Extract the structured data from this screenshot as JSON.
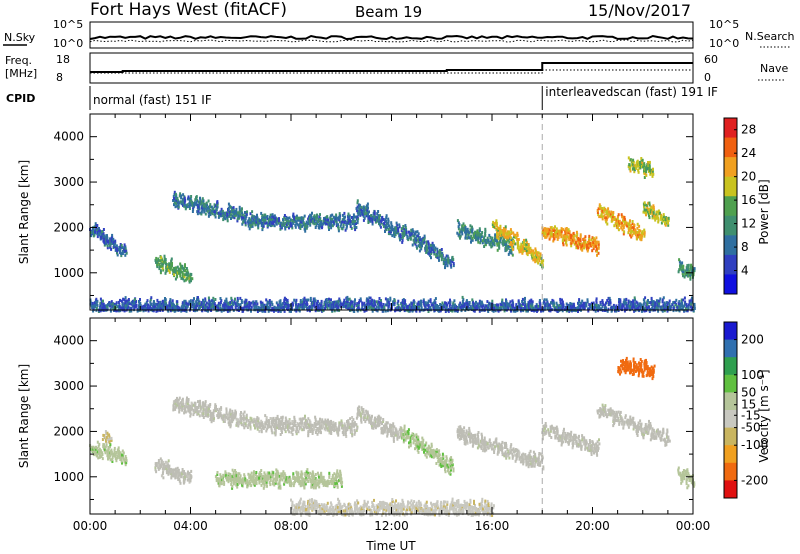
{
  "header": {
    "station": "Fort Hays West (fitACF)",
    "beam": "Beam 19",
    "date": "15/Nov/2017"
  },
  "status_panels": {
    "nsky_label": "N.Sky",
    "nsky_ticks": [
      "10^5",
      "10^0"
    ],
    "nsearch_label": "N.Search",
    "freq_label_line1": "Freq.",
    "freq_label_line2": "[MHz]",
    "freq_ticks": [
      "18",
      "8"
    ],
    "nave_label": "Nave",
    "nave_ticks": [
      "60",
      "0"
    ],
    "cpid_label": "CPID",
    "cpid_modes": [
      {
        "name": "normal (fast) 151 IF",
        "start_hour": 0,
        "end_hour": 18
      },
      {
        "name": "interleavedscan (fast) 191 IF",
        "start_hour": 18,
        "end_hour": 24
      }
    ]
  },
  "colors": {
    "power_scale": [
      "#1010e0",
      "#3040c0",
      "#2f6fa0",
      "#3f8f6f",
      "#4fa04f",
      "#c9c320",
      "#f0a020",
      "#f06010",
      "#e02020"
    ],
    "velocity_scale": [
      "#e01010",
      "#f06a10",
      "#f0a020",
      "#c9b560",
      "#c8c8c0",
      "#b5c59a",
      "#60c040",
      "#2f9f4f",
      "#3070b0",
      "#1a1ad0"
    ],
    "groundscatter": "#bdbdb5"
  },
  "chart_data": [
    {
      "type": "heatmap",
      "name": "Power",
      "xlabel": "",
      "ylabel": "Slant Range [km]",
      "xlim": [
        0,
        24
      ],
      "ylim": [
        180,
        4500
      ],
      "yticks": [
        1000,
        2000,
        3000,
        4000
      ],
      "colorbar_label": "Power [dB]",
      "colorbar_ticks": [
        4,
        8,
        12,
        16,
        20,
        24,
        28
      ],
      "colorbar_range": [
        0,
        30
      ],
      "echo_bands": [
        {
          "t_start": 0.0,
          "t_end": 1.4,
          "r_start": 2000,
          "r_end": 1500,
          "db": 7
        },
        {
          "t_start": 2.6,
          "t_end": 4.0,
          "r_start": 1300,
          "r_end": 1000,
          "db": 14
        },
        {
          "t_start": 3.3,
          "t_end": 6.6,
          "r_start": 2700,
          "r_end": 2200,
          "db": 8
        },
        {
          "t_start": 6.6,
          "t_end": 10.6,
          "r_start": 2200,
          "r_end": 2150,
          "db": 8
        },
        {
          "t_start": 10.6,
          "t_end": 12.4,
          "r_start": 2500,
          "r_end": 1900,
          "db": 8
        },
        {
          "t_start": 12.4,
          "t_end": 14.4,
          "r_start": 2000,
          "r_end": 1250,
          "db": 8
        },
        {
          "t_start": 14.6,
          "t_end": 16.8,
          "r_start": 2000,
          "r_end": 1650,
          "db": 10
        },
        {
          "t_start": 16.0,
          "t_end": 18.0,
          "r_start": 2100,
          "r_end": 1300,
          "db": 20
        },
        {
          "t_start": 18.0,
          "t_end": 20.2,
          "r_start": 2000,
          "r_end": 1600,
          "db": 23
        },
        {
          "t_start": 20.2,
          "t_end": 22.0,
          "r_start": 2400,
          "r_end": 1900,
          "db": 22
        },
        {
          "t_start": 22.0,
          "t_end": 23.0,
          "r_start": 2500,
          "r_end": 2200,
          "db": 18
        },
        {
          "t_start": 21.4,
          "t_end": 22.4,
          "r_start": 3500,
          "r_end": 3300,
          "db": 17
        },
        {
          "t_start": 23.4,
          "t_end": 24.0,
          "r_start": 1200,
          "r_end": 1000,
          "db": 12
        },
        {
          "t_start": 0.0,
          "t_end": 24.0,
          "r_start": 300,
          "r_end": 300,
          "db": 6
        }
      ]
    },
    {
      "type": "heatmap",
      "name": "Velocity",
      "xlabel": "Time UT",
      "ylabel": "Slant Range [km]",
      "xlim": [
        0,
        24
      ],
      "xticks": [
        "00:00",
        "04:00",
        "08:00",
        "12:00",
        "16:00",
        "20:00",
        "00:00"
      ],
      "ylim": [
        180,
        4500
      ],
      "yticks": [
        1000,
        2000,
        3000,
        4000
      ],
      "colorbar_label": "Velocity [m s⁻¹]",
      "colorbar_ticks": [
        200,
        100,
        50,
        15,
        -15,
        -50,
        -100,
        -200
      ],
      "colorbar_range": [
        -250,
        250
      ],
      "echo_bands": [
        {
          "t_start": 0.5,
          "t_end": 0.8,
          "r_start": 2000,
          "r_end": 1900,
          "v": -60
        },
        {
          "t_start": 0.0,
          "t_end": 1.4,
          "r_start": 1700,
          "r_end": 1500,
          "v": 40
        },
        {
          "t_start": 2.6,
          "t_end": 4.0,
          "r_start": 1300,
          "r_end": 1000,
          "v": 0
        },
        {
          "t_start": 3.3,
          "t_end": 6.6,
          "r_start": 2700,
          "r_end": 2200,
          "v": 0
        },
        {
          "t_start": 6.6,
          "t_end": 10.6,
          "r_start": 2200,
          "r_end": 2150,
          "v": 0
        },
        {
          "t_start": 10.6,
          "t_end": 12.4,
          "r_start": 2500,
          "r_end": 1900,
          "v": 0
        },
        {
          "t_start": 12.4,
          "t_end": 14.4,
          "r_start": 2000,
          "r_end": 1250,
          "v": 45
        },
        {
          "t_start": 14.6,
          "t_end": 18.0,
          "r_start": 2000,
          "r_end": 1350,
          "v": 0
        },
        {
          "t_start": 18.0,
          "t_end": 20.2,
          "r_start": 2100,
          "r_end": 1700,
          "v": 0
        },
        {
          "t_start": 20.2,
          "t_end": 23.0,
          "r_start": 2500,
          "r_end": 1900,
          "v": 0
        },
        {
          "t_start": 21.0,
          "t_end": 22.4,
          "r_start": 3500,
          "r_end": 3400,
          "v": -200
        },
        {
          "t_start": 5.0,
          "t_end": 10.0,
          "r_start": 1000,
          "r_end": 1000,
          "v": 40
        },
        {
          "t_start": 23.4,
          "t_end": 24.0,
          "r_start": 1100,
          "r_end": 950,
          "v": 30
        },
        {
          "t_start": 8.0,
          "t_end": 16.0,
          "r_start": 350,
          "r_end": 350,
          "v": -40
        }
      ]
    }
  ]
}
